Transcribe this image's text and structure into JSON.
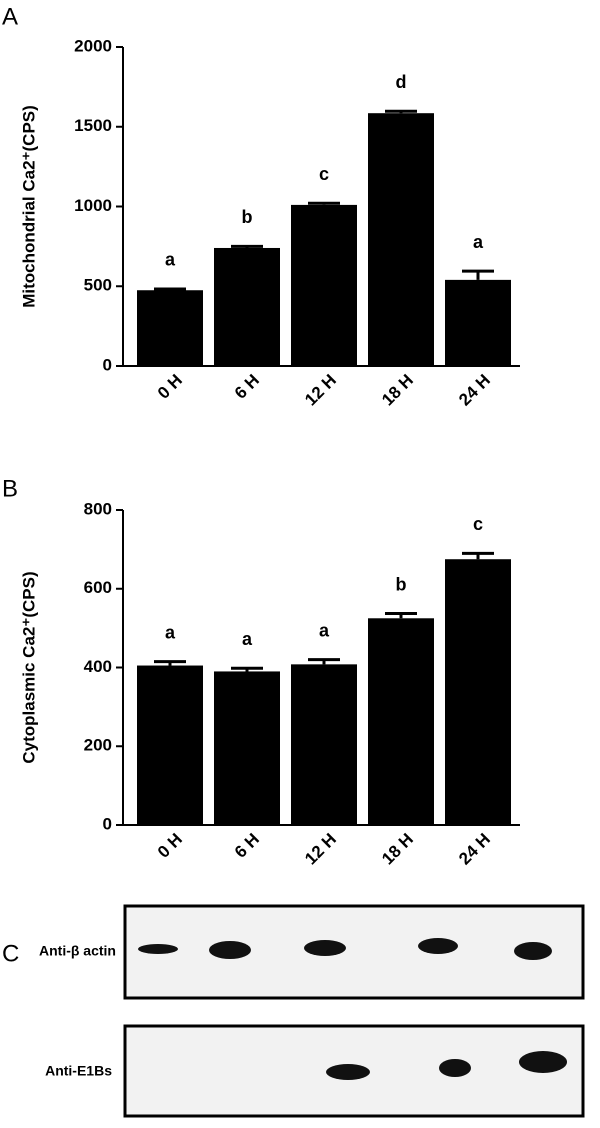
{
  "chart_data": [
    {
      "type": "bar",
      "panel_label": "A",
      "y_label": "Mitochondrial Ca2⁺(CPS)",
      "categories": [
        "0 H",
        "6 H",
        "12 H",
        "18 H",
        "24 H"
      ],
      "values": [
        475,
        740,
        1010,
        1585,
        540
      ],
      "errors": [
        8,
        10,
        10,
        12,
        55
      ],
      "annotations": [
        "a",
        "b",
        "c",
        "d",
        "a"
      ],
      "color": "#000000",
      "ylim": [
        0,
        2000
      ],
      "yticks": [
        0,
        500,
        1000,
        1500,
        2000
      ]
    },
    {
      "type": "bar",
      "panel_label": "B",
      "y_label": "Cytoplasmic Ca2⁺(CPS)",
      "categories": [
        "0 H",
        "6 H",
        "12 H",
        "18 H",
        "24 H"
      ],
      "values": [
        405,
        390,
        408,
        525,
        675
      ],
      "errors": [
        10,
        8,
        12,
        12,
        15
      ],
      "annotations": [
        "a",
        "a",
        "a",
        "b",
        "c"
      ],
      "color": "#000000",
      "ylim": [
        0,
        800
      ],
      "yticks": [
        0,
        200,
        400,
        600,
        800
      ]
    }
  ],
  "blot": {
    "panel_label": "C",
    "rows": [
      {
        "label": "Anti-β actin"
      },
      {
        "label": "Anti-E1Bs"
      }
    ]
  }
}
